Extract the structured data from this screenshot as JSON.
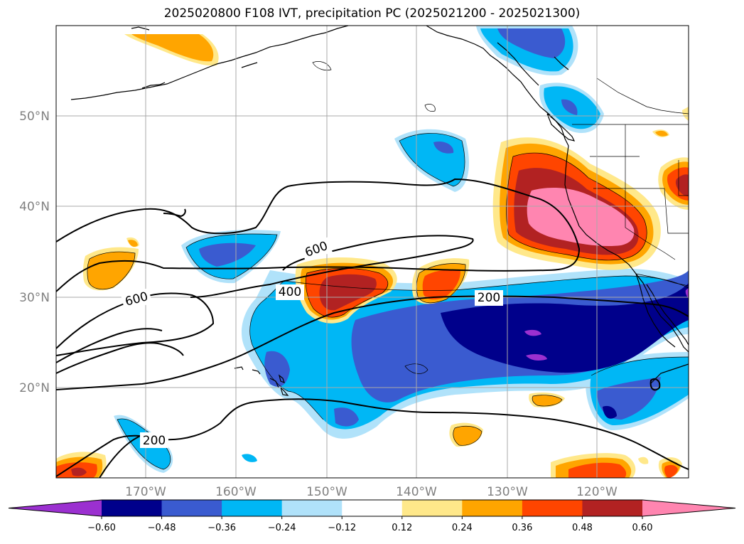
{
  "title": "2025020800 F108 IVT, precipitation PC (2025021200 - 2025021300)",
  "map": {
    "lat_labels": [
      "50°N",
      "40°N",
      "30°N",
      "20°N"
    ],
    "lon_labels": [
      "170°W",
      "160°W",
      "150°W",
      "140°W",
      "130°W",
      "120°W"
    ],
    "ivt_contour_labels": [
      "600",
      "600",
      "400",
      "200",
      "200"
    ]
  },
  "colorbar": {
    "tick_labels": [
      "−0.60",
      "−0.48",
      "−0.36",
      "−0.24",
      "−0.12",
      "0.12",
      "0.24",
      "0.36",
      "0.48",
      "0.60"
    ],
    "colors": [
      "#9b30d0",
      "#00008b",
      "#3a5bd0",
      "#00b7f5",
      "#b0e2fa",
      "#ffffff",
      "#ffe88a",
      "#ffa500",
      "#ff4500",
      "#b22222",
      "#ff85b0"
    ]
  },
  "colors": {
    "land_line": "#000000",
    "grid": "#a9a9a9",
    "ivt_contour": "#000000"
  }
}
